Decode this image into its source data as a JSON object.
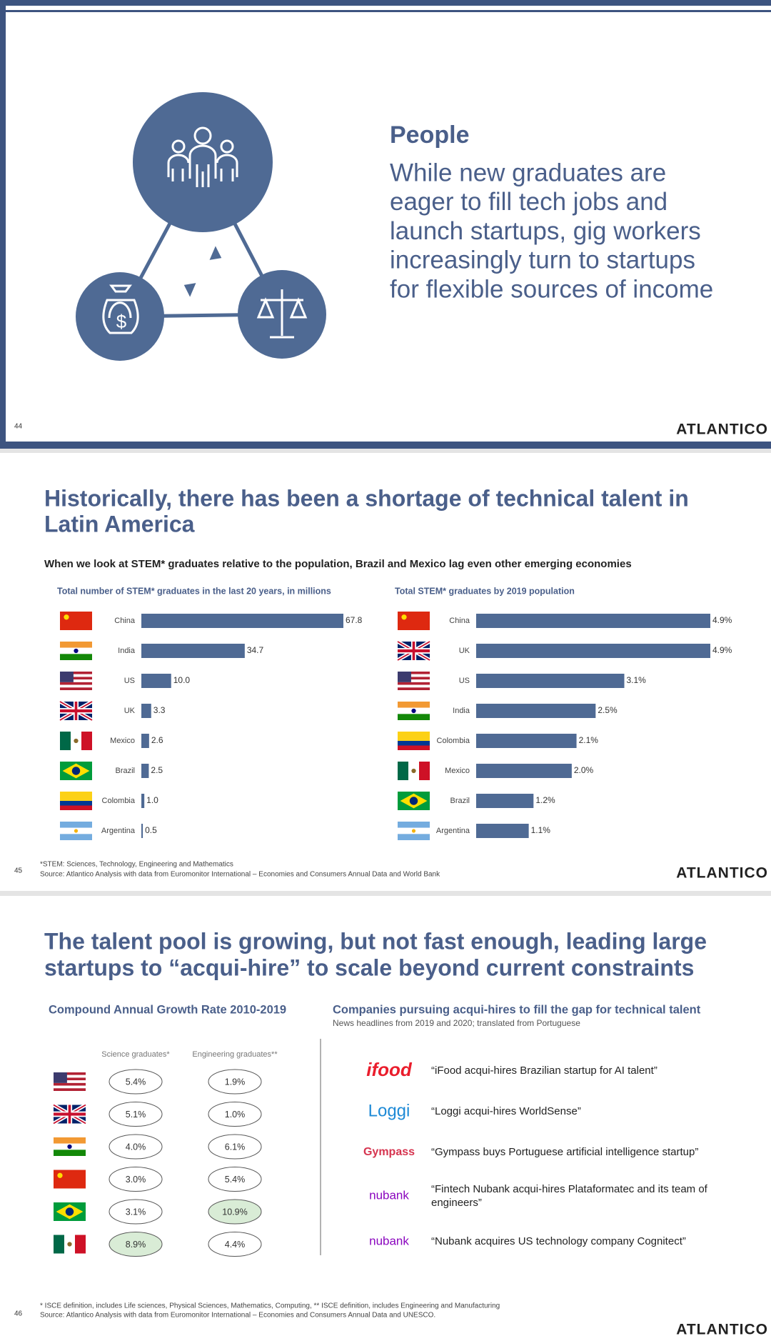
{
  "slide1": {
    "heading": "People",
    "body": [
      "While new graduates are",
      "eager to fill tech jobs and",
      "launch startups, gig workers",
      "increasingly turn to startups",
      "for flexible sources of income"
    ],
    "page": "44",
    "logo": "ATLANTICO"
  },
  "slide2": {
    "title": [
      "Historically, there has been a shortage of technical talent in",
      "Latin America"
    ],
    "subtitle": "When we look at STEM* graduates relative to the population, Brazil and Mexico lag even other emerging economies",
    "footnotes": [
      "*STEM: Sciences, Technology, Engineering and Mathematics",
      "Source: Atlantico Analysis with data from Euromonitor International – Economies and Consumers Annual Data and World Bank"
    ],
    "page": "45",
    "logo": "ATLANTICO"
  },
  "slide3": {
    "title": [
      "The talent pool is growing, but not fast enough, leading large",
      "startups to “acqui-hire” to scale beyond current constraints"
    ],
    "table": {
      "title": "Compound Annual Growth Rate 2010-2019",
      "columns": [
        "Science graduates*",
        "Engineering graduates**"
      ],
      "rows": [
        [
          "5.4%",
          "1.9%"
        ],
        [
          "5.1%",
          "1.0%"
        ],
        [
          "4.0%",
          "6.1%"
        ],
        [
          "3.0%",
          "5.4%"
        ],
        [
          "3.1%",
          "10.9%"
        ],
        [
          "8.9%",
          "4.4%"
        ]
      ]
    },
    "headlines": {
      "title": "Companies pursuing acqui-hires to fill the gap for technical talent",
      "subtitle": "News headlines from 2019 and 2020; translated from Portuguese",
      "items": [
        {
          "logo": "ifood",
          "text": [
            "“iFood acqui-hires Brazilian startup for AI talent”"
          ]
        },
        {
          "logo": "Loggi",
          "text": [
            "“Loggi acqui-hires WorldSense”"
          ]
        },
        {
          "logo": "Gympass",
          "text": [
            "“Gympass buys Portuguese artificial intelligence startup”"
          ]
        },
        {
          "logo": "nubank",
          "text": [
            "“Fintech Nubank acqui-hires Plataformatec and its team of",
            "engineers”"
          ]
        },
        {
          "logo": "nubank",
          "text": [
            "“Nubank acquires US technology company Cognitect”"
          ]
        }
      ]
    },
    "footnotes": [
      "* ISCE definition, includes Life sciences, Physical Sciences, Mathematics, Computing, ** ISCE definition, includes Engineering and Manufacturing",
      "Source: Atlantico Analysis with data from Euromonitor International – Economies and Consumers Annual Data and UNESCO."
    ],
    "page": "46",
    "logo": "ATLANTICO"
  },
  "chart_data": [
    {
      "type": "bar",
      "orientation": "horizontal",
      "title": "Total number of STEM* graduates in the last 20 years, in millions",
      "color": "#4f6a94",
      "categories": [
        "China",
        "India",
        "US",
        "UK",
        "Mexico",
        "Brazil",
        "Colombia",
        "Argentina"
      ],
      "values": [
        67.8,
        34.7,
        10.0,
        3.3,
        2.6,
        2.5,
        1.0,
        0.5
      ],
      "value_labels": [
        "67.8",
        "34.7",
        "10.0",
        "3.3",
        "2.6",
        "2.5",
        "1.0",
        "0.5"
      ]
    },
    {
      "type": "bar",
      "orientation": "horizontal",
      "title": "Total STEM* graduates by 2019 population",
      "color": "#4f6a94",
      "categories": [
        "China",
        "UK",
        "US",
        "India",
        "Colombia",
        "Mexico",
        "Brazil",
        "Argentina"
      ],
      "values": [
        4.9,
        4.9,
        3.1,
        2.5,
        2.1,
        2.0,
        1.2,
        1.1
      ],
      "value_labels": [
        "4.9%",
        "4.9%",
        "3.1%",
        "2.5%",
        "2.1%",
        "2.0%",
        "1.2%",
        "1.1%"
      ]
    }
  ]
}
